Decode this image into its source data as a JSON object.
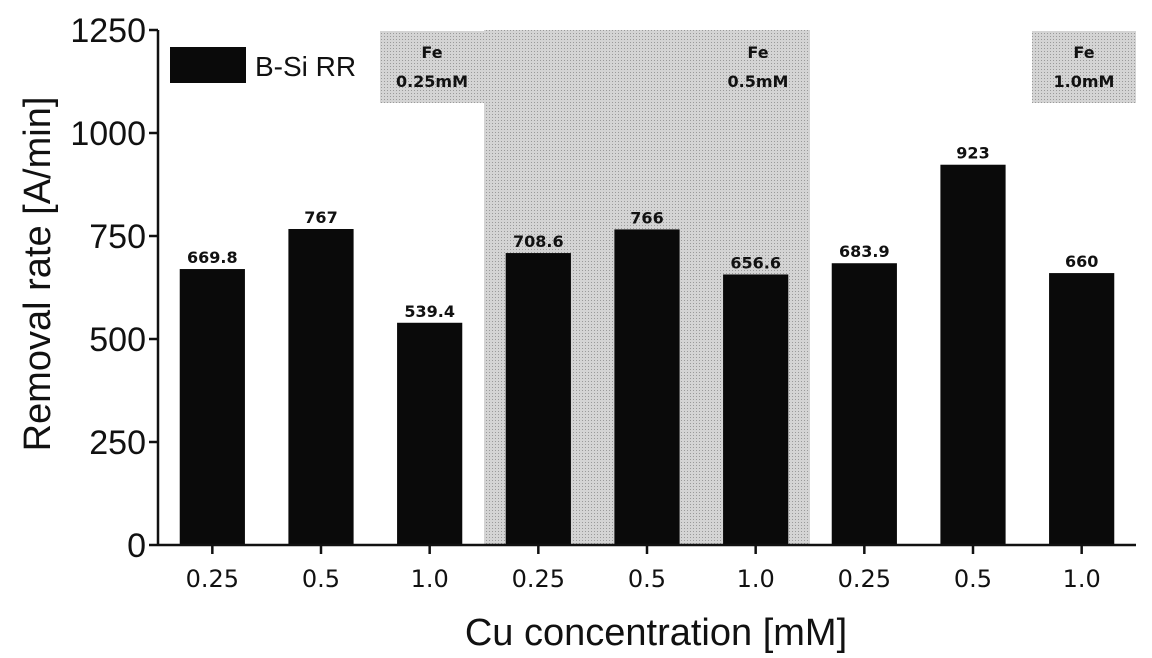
{
  "chart_data": {
    "type": "bar",
    "xlabel": "Cu concentration [mM]",
    "ylabel": "Removal rate [A/min]",
    "ylim": [
      0,
      1250
    ],
    "yticks": [
      0,
      250,
      500,
      750,
      1000,
      1250
    ],
    "categories": [
      "0.25",
      "0.5",
      "1.0",
      "0.25",
      "0.5",
      "1.0",
      "0.25",
      "0.5",
      "1.0"
    ],
    "series": [
      {
        "name": "B-Si RR",
        "values": [
          669.8,
          767,
          539.4,
          708.6,
          766,
          656.6,
          683.9,
          923,
          660
        ],
        "value_labels": [
          "669.8",
          "767",
          "539.4",
          "708.6",
          "766",
          "656.6",
          "683.9",
          "923",
          "660"
        ]
      }
    ],
    "regions": [
      {
        "label_line1": "Fe",
        "label_line2": "0.25mM",
        "start": 0,
        "end": 2,
        "shaded": false
      },
      {
        "label_line1": "Fe",
        "label_line2": "0.5mM",
        "start": 3,
        "end": 5,
        "shaded": true
      },
      {
        "label_line1": "Fe",
        "label_line2": "1.0mM",
        "start": 6,
        "end": 8,
        "shaded": false
      }
    ],
    "legend": {
      "position": "top-left"
    },
    "grid": false,
    "colors": {
      "bar": "#0a0a0a",
      "shade": "#d4d4d4",
      "label_box": "#d0d0d0"
    }
  }
}
